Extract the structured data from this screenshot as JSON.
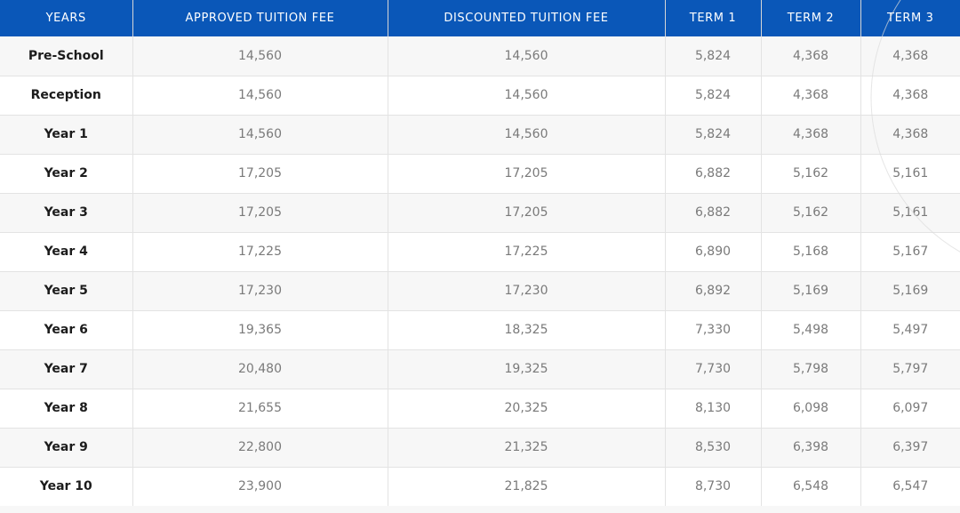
{
  "table": {
    "headers": [
      "YEARS",
      "APPROVED TUITION FEE",
      "DISCOUNTED TUITION FEE",
      "TERM 1",
      "TERM 2",
      "TERM 3"
    ],
    "rows": [
      [
        "Pre-School",
        "14,560",
        "14,560",
        "5,824",
        "4,368",
        "4,368"
      ],
      [
        "Reception",
        "14,560",
        "14,560",
        "5,824",
        "4,368",
        "4,368"
      ],
      [
        "Year 1",
        "14,560",
        "14,560",
        "5,824",
        "4,368",
        "4,368"
      ],
      [
        "Year 2",
        "17,205",
        "17,205",
        "6,882",
        "5,162",
        "5,161"
      ],
      [
        "Year 3",
        "17,205",
        "17,205",
        "6,882",
        "5,162",
        "5,161"
      ],
      [
        "Year 4",
        "17,225",
        "17,225",
        "6,890",
        "5,168",
        "5,167"
      ],
      [
        "Year 5",
        "17,230",
        "17,230",
        "6,892",
        "5,169",
        "5,169"
      ],
      [
        "Year 6",
        "19,365",
        "18,325",
        "7,330",
        "5,498",
        "5,497"
      ],
      [
        "Year 7",
        "20,480",
        "19,325",
        "7,730",
        "5,798",
        "5,797"
      ],
      [
        "Year 8",
        "21,655",
        "20,325",
        "8,130",
        "6,098",
        "6,097"
      ],
      [
        "Year 9",
        "22,800",
        "21,325",
        "8,530",
        "6,398",
        "6,397"
      ],
      [
        "Year 10",
        "23,900",
        "21,825",
        "8,730",
        "6,548",
        "6,547"
      ]
    ]
  }
}
